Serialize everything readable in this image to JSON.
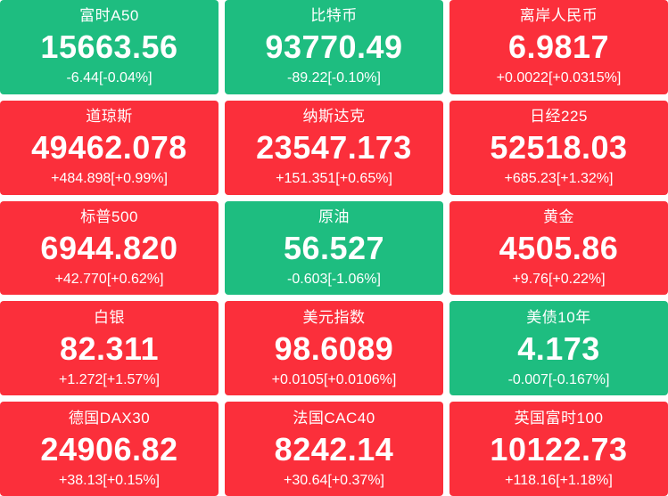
{
  "colors": {
    "up": "#fb2f3b",
    "down": "#1ebd80",
    "text": "#ffffff",
    "background": "#ffffff"
  },
  "tiles": [
    {
      "name": "富时A50",
      "value": "15663.56",
      "change": "-6.44[-0.04%]",
      "direction": "down"
    },
    {
      "name": "比特币",
      "value": "93770.49",
      "change": "-89.22[-0.10%]",
      "direction": "down"
    },
    {
      "name": "离岸人民币",
      "value": "6.9817",
      "change": "+0.0022[+0.0315%]",
      "direction": "up"
    },
    {
      "name": "道琼斯",
      "value": "49462.078",
      "change": "+484.898[+0.99%]",
      "direction": "up"
    },
    {
      "name": "纳斯达克",
      "value": "23547.173",
      "change": "+151.351[+0.65%]",
      "direction": "up"
    },
    {
      "name": "日经225",
      "value": "52518.03",
      "change": "+685.23[+1.32%]",
      "direction": "up"
    },
    {
      "name": "标普500",
      "value": "6944.820",
      "change": "+42.770[+0.62%]",
      "direction": "up"
    },
    {
      "name": "原油",
      "value": "56.527",
      "change": "-0.603[-1.06%]",
      "direction": "down"
    },
    {
      "name": "黄金",
      "value": "4505.86",
      "change": "+9.76[+0.22%]",
      "direction": "up"
    },
    {
      "name": "白银",
      "value": "82.311",
      "change": "+1.272[+1.57%]",
      "direction": "up"
    },
    {
      "name": "美元指数",
      "value": "98.6089",
      "change": "+0.0105[+0.0106%]",
      "direction": "up"
    },
    {
      "name": "美债10年",
      "value": "4.173",
      "change": "-0.007[-0.167%]",
      "direction": "down"
    },
    {
      "name": "德国DAX30",
      "value": "24906.82",
      "change": "+38.13[+0.15%]",
      "direction": "up"
    },
    {
      "name": "法国CAC40",
      "value": "8242.14",
      "change": "+30.64[+0.37%]",
      "direction": "up"
    },
    {
      "name": "英国富时100",
      "value": "10122.73",
      "change": "+118.16[+1.18%]",
      "direction": "up"
    }
  ]
}
